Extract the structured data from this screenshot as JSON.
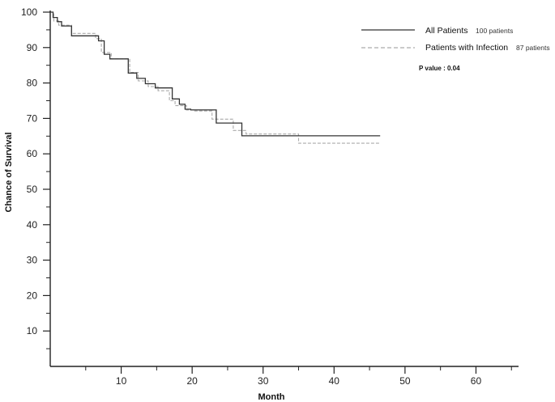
{
  "chart_data": {
    "type": "line",
    "title": "",
    "xlabel": "Month",
    "ylabel": "Chance of Survival",
    "xlim": [
      0,
      66
    ],
    "ylim": [
      0,
      100
    ],
    "x_ticks": [
      10,
      20,
      30,
      40,
      50,
      60
    ],
    "y_ticks": [
      10,
      20,
      30,
      40,
      50,
      60,
      70,
      80,
      90,
      100
    ],
    "y_minor_ticks": [
      5,
      15,
      25,
      35,
      45,
      55,
      65,
      75,
      85,
      95
    ],
    "x_minor_ticks": [
      5,
      15,
      25,
      35,
      45,
      55,
      65
    ],
    "x_tick_labels": [
      "10",
      "20",
      "30",
      "40",
      "50",
      "60"
    ],
    "y_tick_labels": [
      "10",
      "20",
      "30",
      "40",
      "50",
      "60",
      "70",
      "80",
      "90",
      "100"
    ],
    "grid": false,
    "legend_position": "top-right",
    "step": true,
    "series": [
      {
        "name": "All Patients",
        "count_label": "100 patients",
        "style": "solid",
        "color": "#333333",
        "x": [
          0,
          0.4,
          1,
          1.6,
          3,
          6.8,
          7.6,
          8.4,
          11,
          12.2,
          13.4,
          14.8,
          17.2,
          18.2,
          19,
          19.8,
          23.4,
          25.6,
          27,
          31,
          46.5
        ],
        "y": [
          100,
          98.5,
          97.3,
          96.1,
          93.3,
          91.9,
          88.1,
          86.8,
          82.8,
          81.3,
          79.8,
          78.6,
          75.5,
          74.0,
          72.6,
          72.4,
          68.7,
          68.7,
          65.1,
          65.1,
          65.1
        ]
      },
      {
        "name": "Patients with Infection",
        "count_label": "87 patients",
        "style": "dashed",
        "color": "#aaaaaa",
        "x": [
          0,
          0.5,
          1.2,
          3,
          6.4,
          7.2,
          8.6,
          11.2,
          12.4,
          13.8,
          15.2,
          16.8,
          17.6,
          19.2,
          20.2,
          22.8,
          25.8,
          27.6,
          35,
          46.5
        ],
        "y": [
          100,
          97.5,
          96.3,
          94.0,
          92.5,
          88.6,
          86.8,
          83.0,
          80.6,
          79.0,
          77.8,
          75.0,
          73.6,
          72.4,
          72.1,
          69.8,
          66.6,
          65.6,
          63.0,
          63.0
        ]
      }
    ],
    "annotations": [
      "P value : 0.04"
    ]
  }
}
